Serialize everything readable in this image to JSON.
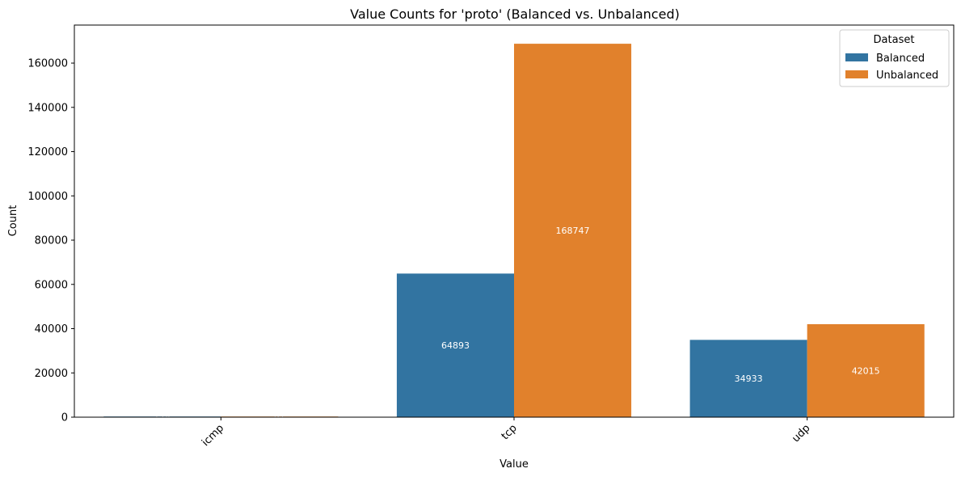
{
  "colors": {
    "balanced": "#3274a1",
    "unbalanced": "#e1812c"
  },
  "chart_data": {
    "type": "bar",
    "title": "Value Counts for 'proto' (Balanced vs. Unbalanced)",
    "xlabel": "Value",
    "ylabel": "Count",
    "categories": [
      "icmp",
      "tcp",
      "udp"
    ],
    "series": [
      {
        "name": "Balanced",
        "values": [
          174,
          64893,
          34933
        ]
      },
      {
        "name": "Unbalanced",
        "values": [
          91,
          168747,
          42015
        ]
      }
    ],
    "bar_labels": [
      [
        "174",
        "64893",
        "34933"
      ],
      [
        "91",
        "168747",
        "42015"
      ]
    ],
    "ylim": [
      0,
      177187
    ],
    "yticks": [
      0,
      20000,
      40000,
      60000,
      80000,
      100000,
      120000,
      140000,
      160000
    ],
    "legend": {
      "title": "Dataset",
      "position": "top-right"
    },
    "grid": false
  }
}
